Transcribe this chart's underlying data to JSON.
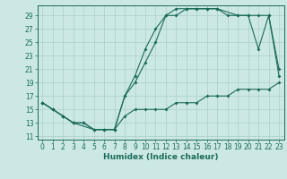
{
  "xlabel": "Humidex (Indice chaleur)",
  "bg_color": "#cce8e5",
  "grid_color": "#aacfcc",
  "line_color": "#1a6b5a",
  "xlim": [
    -0.5,
    23.5
  ],
  "ylim": [
    10.5,
    30.5
  ],
  "xticks": [
    0,
    1,
    2,
    3,
    4,
    5,
    6,
    7,
    8,
    9,
    10,
    11,
    12,
    13,
    14,
    15,
    16,
    17,
    18,
    19,
    20,
    21,
    22,
    23
  ],
  "yticks": [
    11,
    13,
    15,
    17,
    19,
    21,
    23,
    25,
    27,
    29
  ],
  "line1_x": [
    0,
    1,
    2,
    3,
    4,
    5,
    6,
    7,
    8,
    9,
    10,
    11,
    12,
    13,
    14,
    15,
    16,
    17,
    18,
    19,
    20,
    21,
    22,
    23
  ],
  "line1_y": [
    16,
    15,
    14,
    13,
    13,
    12,
    12,
    12,
    17,
    20,
    24,
    27,
    29,
    30,
    30,
    30,
    30,
    30,
    29,
    29,
    29,
    24,
    29,
    21
  ],
  "line2_x": [
    0,
    1,
    2,
    3,
    5,
    7,
    8,
    9,
    10,
    11,
    12,
    13,
    14,
    15,
    16,
    17,
    19,
    20,
    21,
    22,
    23
  ],
  "line2_y": [
    16,
    15,
    14,
    13,
    12,
    12,
    17,
    19,
    22,
    25,
    29,
    29,
    30,
    30,
    30,
    30,
    29,
    29,
    29,
    29,
    20
  ],
  "line3_x": [
    0,
    1,
    2,
    3,
    4,
    5,
    6,
    7,
    8,
    9,
    10,
    11,
    12,
    13,
    14,
    15,
    16,
    17,
    18,
    19,
    20,
    21,
    22,
    23
  ],
  "line3_y": [
    16,
    15,
    14,
    13,
    13,
    12,
    12,
    12,
    14,
    15,
    15,
    15,
    15,
    16,
    16,
    16,
    17,
    17,
    17,
    18,
    18,
    18,
    18,
    19
  ],
  "tick_fontsize": 5.5,
  "xlabel_fontsize": 6.5
}
